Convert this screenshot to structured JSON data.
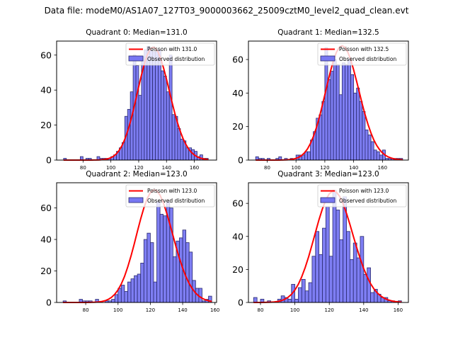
{
  "suptitle": "Data file: modeM0/AS1A07_127T03_9000003662_25009cztM0_level2_quad_clean.evt",
  "colors": {
    "bar_fill": "#7777f2",
    "bar_edge": "#2a2a6e",
    "line": "#ff0000"
  },
  "chart_data": [
    {
      "type": "bar",
      "title": "Quadrant 0: Median=131.0",
      "xlim": [
        61,
        176
      ],
      "ylim": [
        0,
        68
      ],
      "xticks": [
        80,
        100,
        120,
        140,
        160
      ],
      "yticks": [
        0,
        20,
        40,
        60
      ],
      "bin_width": 2,
      "bins_start": [
        66,
        68,
        70,
        72,
        74,
        76,
        78,
        80,
        82,
        84,
        86,
        88,
        90,
        92,
        94,
        96,
        98,
        100,
        102,
        104,
        106,
        108,
        110,
        112,
        114,
        116,
        118,
        120,
        122,
        124,
        126,
        128,
        130,
        132,
        134,
        136,
        138,
        140,
        142,
        144,
        146,
        148,
        150,
        152,
        154,
        156,
        158,
        160,
        162,
        164,
        166,
        168
      ],
      "values": [
        1,
        0,
        0,
        0,
        0,
        0,
        2,
        0,
        1,
        1,
        0,
        0,
        2,
        1,
        1,
        1,
        1,
        2,
        3,
        5,
        7,
        10,
        25,
        29,
        39,
        60,
        54,
        37,
        59,
        63,
        65,
        63,
        62,
        62,
        63,
        51,
        48,
        39,
        60,
        26,
        25,
        18,
        12,
        11,
        7,
        7,
        6,
        5,
        2,
        3,
        1,
        1
      ],
      "series": [
        {
          "name": "Poisson with 131.0",
          "kind": "line",
          "mean": 131.0,
          "peak": 64.5
        },
        {
          "name": "Observed distribution",
          "kind": "hist"
        }
      ],
      "legend": "top-right"
    },
    {
      "type": "bar",
      "title": "Quadrant 1: Median=132.5",
      "xlim": [
        67,
        178
      ],
      "ylim": [
        0,
        71
      ],
      "xticks": [
        80,
        100,
        120,
        140,
        160
      ],
      "yticks": [
        0,
        20,
        40,
        60
      ],
      "bin_width": 2,
      "bins_start": [
        72,
        74,
        76,
        78,
        80,
        82,
        84,
        86,
        88,
        90,
        92,
        94,
        96,
        98,
        100,
        102,
        104,
        106,
        108,
        110,
        112,
        114,
        116,
        118,
        120,
        122,
        124,
        126,
        128,
        130,
        132,
        134,
        136,
        138,
        140,
        142,
        144,
        146,
        148,
        150,
        152,
        154,
        156,
        158,
        160,
        162,
        164,
        166,
        168,
        170,
        172
      ],
      "values": [
        2,
        1,
        1,
        0,
        1,
        0,
        0,
        1,
        2,
        0,
        1,
        0,
        1,
        0,
        3,
        3,
        3,
        5,
        5,
        12,
        17,
        25,
        27,
        35,
        67,
        48,
        53,
        60,
        57,
        39,
        58,
        57,
        60,
        51,
        40,
        43,
        35,
        29,
        18,
        15,
        11,
        6,
        5,
        3,
        6,
        1,
        1,
        1,
        1,
        1,
        1
      ],
      "series": [
        {
          "name": "Poisson with 132.5",
          "kind": "line",
          "mean": 132.5,
          "peak": 68.0
        },
        {
          "name": "Observed distribution",
          "kind": "hist"
        }
      ],
      "legend": "top-right"
    },
    {
      "type": "bar",
      "title": "Quadrant 2: Median=123.0",
      "xlim": [
        62,
        161
      ],
      "ylim": [
        0,
        76
      ],
      "xticks": [
        80,
        100,
        120,
        140,
        160
      ],
      "yticks": [
        0,
        20,
        40,
        60
      ],
      "bin_width": 2,
      "bins_start": [
        66,
        68,
        70,
        72,
        74,
        76,
        78,
        80,
        82,
        84,
        86,
        88,
        90,
        92,
        94,
        96,
        98,
        100,
        102,
        104,
        106,
        108,
        110,
        112,
        114,
        116,
        118,
        120,
        122,
        124,
        126,
        128,
        130,
        132,
        134,
        136,
        138,
        140,
        142,
        144,
        146,
        148,
        150,
        152,
        154,
        156
      ],
      "values": [
        1,
        0,
        0,
        0,
        0,
        2,
        1,
        1,
        1,
        0,
        2,
        0,
        0,
        1,
        1,
        2,
        5,
        9,
        11,
        7,
        13,
        15,
        17,
        18,
        25,
        40,
        44,
        38,
        13,
        64,
        56,
        55,
        64,
        60,
        29,
        39,
        41,
        46,
        38,
        32,
        14,
        9,
        9,
        1,
        2,
        4
      ],
      "series": [
        {
          "name": "Poisson with 123.0",
          "kind": "line",
          "mean": 123.0,
          "peak": 71.5
        },
        {
          "name": "Observed distribution",
          "kind": "hist"
        }
      ],
      "legend": "top-right"
    },
    {
      "type": "bar",
      "title": "Quadrant 3: Median=123.0",
      "xlim": [
        73,
        166
      ],
      "ylim": [
        0,
        72.5
      ],
      "xticks": [
        80,
        100,
        120,
        140,
        160
      ],
      "yticks": [
        0,
        20,
        40,
        60
      ],
      "bin_width": 2,
      "bins_start": [
        76,
        78,
        80,
        82,
        84,
        86,
        88,
        90,
        92,
        94,
        96,
        98,
        100,
        102,
        104,
        106,
        108,
        110,
        112,
        114,
        116,
        118,
        120,
        122,
        124,
        126,
        128,
        130,
        132,
        134,
        136,
        138,
        140,
        142,
        144,
        146,
        148,
        150,
        152,
        154,
        156,
        158,
        160
      ],
      "values": [
        3,
        0,
        2,
        0,
        1,
        0,
        0,
        2,
        4,
        3,
        2,
        11,
        2,
        9,
        14,
        7,
        12,
        28,
        43,
        29,
        45,
        58,
        28,
        68,
        56,
        38,
        64,
        43,
        26,
        36,
        27,
        40,
        17,
        21,
        6,
        8,
        5,
        3,
        3,
        1,
        1,
        0,
        1
      ],
      "series": [
        {
          "name": "Poisson with 123.0",
          "kind": "line",
          "mean": 123.0,
          "peak": 67.5
        },
        {
          "name": "Observed distribution",
          "kind": "hist"
        }
      ],
      "legend": "top-right"
    }
  ]
}
